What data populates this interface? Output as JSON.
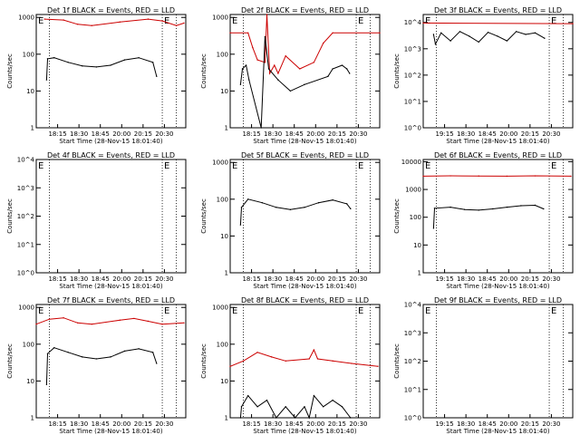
{
  "figure": {
    "panels": [
      {
        "title": "Det 1f BLACK = Events, RED = LLD",
        "ylabel": "Counts/sec",
        "xlabel": "Start Time (28-Nov-15 18:01:40)"
      },
      {
        "title": "Det 2f BLACK = Events, RED = LLD",
        "ylabel": "Counts/sec",
        "xlabel": "Start Time (28-Nov-15 18:01:40)"
      },
      {
        "title": "Det 3f BLACK = Events, RED = LLD",
        "ylabel": "Counts/sec",
        "xlabel": "Start Time (28-Nov-15 18:01:40)"
      },
      {
        "title": "Det 4f BLACK = Events, RED = LLD",
        "ylabel": "Counts/sec",
        "xlabel": "Start Time (28-Nov-15 18:01:40)"
      },
      {
        "title": "Det 5f BLACK = Events, RED = LLD",
        "ylabel": "Counts/sec",
        "xlabel": "Start Time (28-Nov-15 18:01:40)"
      },
      {
        "title": "Det 6f BLACK = Events, RED = LLD",
        "ylabel": "Counts/sec",
        "xlabel": "Start Time (28-Nov-15 18:01:40)"
      },
      {
        "title": "Det 7f BLACK = Events, RED = LLD",
        "ylabel": "Counts/sec",
        "xlabel": "Start Time (28-Nov-15 18:01:40)"
      },
      {
        "title": "Det 8f BLACK = Events, RED = LLD",
        "ylabel": "Counts/sec",
        "xlabel": "Start Time (28-Nov-15 18:01:40)"
      },
      {
        "title": "Det 9f BLACK = Events, RED = LLD",
        "ylabel": "Counts/sec",
        "xlabel": "Start Time (28-Nov-15 18:01:40)"
      }
    ]
  },
  "chart_data": [
    {
      "type": "line",
      "title": "Det 1f BLACK = Events, RED = LLD",
      "xlabel": "Start Time (28-Nov-15 18:01:40)",
      "ylabel": "Counts/sec",
      "xlim": [
        "18:01",
        "20:40"
      ],
      "ylim": [
        1,
        1200
      ],
      "yscale": "log",
      "x_ticks": [
        "18:15",
        "18:30",
        "18:45",
        "20:00",
        "20:15",
        "20:30"
      ],
      "y_ticks": [
        "1",
        "10",
        "100",
        "1000"
      ],
      "markers": {
        "S": "18:15",
        "E": "20:15"
      },
      "series": [
        {
          "name": "LLD",
          "color": "#cc0000",
          "points": [
            [
              "18:10",
              900
            ],
            [
              "18:30",
              850
            ],
            [
              "18:45",
              650
            ],
            [
              "19:00",
              600
            ],
            [
              "19:30",
              750
            ],
            [
              "20:00",
              900
            ],
            [
              "20:15",
              800
            ],
            [
              "20:30",
              600
            ],
            [
              "20:38",
              700
            ]
          ]
        },
        {
          "name": "Events",
          "color": "#000000",
          "points": [
            [
              "18:12",
              20
            ],
            [
              "18:13",
              75
            ],
            [
              "18:20",
              80
            ],
            [
              "18:35",
              60
            ],
            [
              "18:50",
              48
            ],
            [
              "19:05",
              45
            ],
            [
              "19:20",
              50
            ],
            [
              "19:35",
              70
            ],
            [
              "19:50",
              80
            ],
            [
              "20:05",
              60
            ],
            [
              "20:09",
              25
            ]
          ]
        }
      ],
      "grid": false
    },
    {
      "type": "line",
      "title": "Det 2f BLACK = Events, RED = LLD",
      "xlabel": "Start Time (28-Nov-15 18:01:40)",
      "ylabel": "Counts/sec",
      "xlim": [
        "18:01",
        "20:40"
      ],
      "ylim": [
        1,
        1200
      ],
      "yscale": "log",
      "x_ticks": [
        "18:15",
        "18:30",
        "18:45",
        "20:00",
        "20:15",
        "20:30"
      ],
      "y_ticks": [
        "1",
        "10",
        "100",
        "1000"
      ],
      "markers": {
        "S": "18:15",
        "E": "20:15"
      },
      "series": [
        {
          "name": "LLD",
          "color": "#cc0000",
          "points": [
            [
              "18:01",
              380
            ],
            [
              "18:20",
              380
            ],
            [
              "18:25",
              150
            ],
            [
              "18:30",
              70
            ],
            [
              "18:38",
              60
            ],
            [
              "18:40",
              1200
            ],
            [
              "18:43",
              30
            ],
            [
              "18:48",
              50
            ],
            [
              "18:52",
              30
            ],
            [
              "19:00",
              90
            ],
            [
              "19:15",
              40
            ],
            [
              "19:30",
              60
            ],
            [
              "19:40",
              200
            ],
            [
              "19:50",
              380
            ],
            [
              "20:40",
              380
            ]
          ]
        },
        {
          "name": "Events",
          "color": "#000000",
          "points": [
            [
              "18:12",
              15
            ],
            [
              "18:14",
              40
            ],
            [
              "18:18",
              50
            ],
            [
              "18:21",
              20
            ],
            [
              "18:34",
              1
            ],
            [
              "18:38",
              300
            ],
            [
              "18:42",
              40
            ],
            [
              "18:52",
              20
            ],
            [
              "19:05",
              10
            ],
            [
              "19:20",
              15
            ],
            [
              "19:45",
              25
            ],
            [
              "19:50",
              40
            ],
            [
              "20:00",
              50
            ],
            [
              "20:05",
              40
            ],
            [
              "20:08",
              30
            ]
          ]
        }
      ],
      "grid": false
    },
    {
      "type": "line",
      "title": "Det 3f BLACK = Events, RED = LLD",
      "xlabel": "Start Time (28-Nov-15 18:01:40)",
      "ylabel": "Counts/sec",
      "xlim": [
        "18:01",
        "20:40"
      ],
      "ylim": [
        1,
        20000
      ],
      "yscale": "log",
      "x_ticks": [
        "19:15",
        "18:30",
        "18:45",
        "20:00",
        "20:15",
        "20:30"
      ],
      "y_ticks": [
        "10^0",
        "10^1",
        "10^2",
        "10^3",
        "10^4"
      ],
      "markers": {
        "S": "18:15",
        "E": "20:15"
      },
      "series": [
        {
          "name": "LLD",
          "color": "#cc0000",
          "points": [
            [
              "18:01",
              9500
            ],
            [
              "20:40",
              9000
            ]
          ]
        },
        {
          "name": "Events",
          "color": "#000000",
          "points": [
            [
              "18:12",
              3500
            ],
            [
              "18:14",
              1500
            ],
            [
              "18:20",
              4000
            ],
            [
              "18:30",
              2000
            ],
            [
              "18:40",
              4500
            ],
            [
              "18:50",
              3000
            ],
            [
              "19:00",
              1800
            ],
            [
              "19:10",
              4200
            ],
            [
              "19:20",
              3000
            ],
            [
              "19:30",
              2000
            ],
            [
              "19:40",
              4500
            ],
            [
              "19:50",
              3500
            ],
            [
              "20:00",
              4000
            ],
            [
              "20:10",
              2500
            ]
          ]
        }
      ],
      "grid": false
    },
    {
      "type": "line",
      "title": "Det 4f BLACK = Events, RED = LLD",
      "xlabel": "Start Time (28-Nov-15 18:01:40)",
      "ylabel": "Counts/sec",
      "xlim": [
        "18:01",
        "20:40"
      ],
      "ylim": [
        1,
        10000
      ],
      "yscale": "log",
      "x_ticks": [
        "18:15",
        "18:30",
        "18:45",
        "20:00",
        "20:15",
        "20:30"
      ],
      "y_ticks": [
        "10^0",
        "10^1",
        "10^2",
        "10^3",
        "10^4"
      ],
      "markers": {
        "S": "18:15",
        "E": "20:15"
      },
      "series": [],
      "grid": false
    },
    {
      "type": "line",
      "title": "Det 5f BLACK = Events, RED = LLD",
      "xlabel": "Start Time (28-Nov-15 18:01:40)",
      "ylabel": "Counts/sec",
      "xlim": [
        "18:01",
        "20:40"
      ],
      "ylim": [
        1,
        1200
      ],
      "yscale": "log",
      "x_ticks": [
        "18:15",
        "18:30",
        "18:45",
        "20:00",
        "20:15",
        "20:30"
      ],
      "y_ticks": [
        "1",
        "10",
        "100",
        "1000"
      ],
      "markers": {
        "S": "18:15",
        "E": "20:15"
      },
      "series": [
        {
          "name": "Events",
          "color": "#000000",
          "points": [
            [
              "18:12",
              20
            ],
            [
              "18:13",
              60
            ],
            [
              "18:20",
              100
            ],
            [
              "18:35",
              80
            ],
            [
              "18:50",
              60
            ],
            [
              "19:05",
              52
            ],
            [
              "19:20",
              60
            ],
            [
              "19:35",
              80
            ],
            [
              "19:50",
              95
            ],
            [
              "20:05",
              75
            ],
            [
              "20:09",
              55
            ]
          ]
        }
      ],
      "grid": false
    },
    {
      "type": "line",
      "title": "Det 6f BLACK = Events, RED = LLD",
      "xlabel": "Start Time (28-Nov-15 18:01:40)",
      "ylabel": "Counts/sec",
      "xlim": [
        "18:01",
        "20:40"
      ],
      "ylim": [
        1,
        12000
      ],
      "yscale": "log",
      "x_ticks": [
        "19:15",
        "18:30",
        "18:45",
        "20:00",
        "20:15",
        "20:30"
      ],
      "y_ticks": [
        "1",
        "10",
        "100",
        "1000",
        "10000"
      ],
      "markers": {
        "S": "18:15",
        "E": "20:15"
      },
      "series": [
        {
          "name": "LLD",
          "color": "#cc0000",
          "points": [
            [
              "18:01",
              3000
            ],
            [
              "18:30",
              3100
            ],
            [
              "19:00",
              3050
            ],
            [
              "19:30",
              3000
            ],
            [
              "20:00",
              3100
            ],
            [
              "20:38",
              3000
            ]
          ]
        },
        {
          "name": "Events",
          "color": "#000000",
          "points": [
            [
              "18:12",
              40
            ],
            [
              "18:13",
              210
            ],
            [
              "18:30",
              230
            ],
            [
              "18:45",
              190
            ],
            [
              "19:00",
              180
            ],
            [
              "19:15",
              200
            ],
            [
              "19:30",
              230
            ],
            [
              "19:45",
              260
            ],
            [
              "20:00",
              270
            ],
            [
              "20:09",
              200
            ]
          ]
        }
      ],
      "grid": false
    },
    {
      "type": "line",
      "title": "Det 7f BLACK = Events, RED = LLD",
      "xlabel": "Start Time (28-Nov-15 18:01:40)",
      "ylabel": "Counts/sec",
      "xlim": [
        "18:01",
        "20:40"
      ],
      "ylim": [
        1,
        1200
      ],
      "yscale": "log",
      "x_ticks": [
        "18:15",
        "18:30",
        "18:45",
        "20:00",
        "20:15",
        "20:30"
      ],
      "y_ticks": [
        "1",
        "10",
        "100",
        "1000"
      ],
      "markers": {
        "S": "18:15",
        "E": "20:15"
      },
      "series": [
        {
          "name": "LLD",
          "color": "#cc0000",
          "points": [
            [
              "18:01",
              350
            ],
            [
              "18:15",
              480
            ],
            [
              "18:30",
              520
            ],
            [
              "18:45",
              380
            ],
            [
              "19:00",
              350
            ],
            [
              "19:30",
              450
            ],
            [
              "19:45",
              500
            ],
            [
              "20:00",
              420
            ],
            [
              "20:15",
              350
            ],
            [
              "20:38",
              380
            ]
          ]
        },
        {
          "name": "Events",
          "color": "#000000",
          "points": [
            [
              "18:12",
              8
            ],
            [
              "18:13",
              55
            ],
            [
              "18:20",
              80
            ],
            [
              "18:35",
              60
            ],
            [
              "18:50",
              45
            ],
            [
              "19:05",
              40
            ],
            [
              "19:20",
              45
            ],
            [
              "19:35",
              65
            ],
            [
              "19:50",
              75
            ],
            [
              "20:05",
              60
            ],
            [
              "20:09",
              30
            ]
          ]
        }
      ],
      "grid": false
    },
    {
      "type": "line",
      "title": "Det 8f BLACK = Events, RED = LLD",
      "xlabel": "Start Time (28-Nov-15 18:01:40)",
      "ylabel": "Counts/sec",
      "xlim": [
        "18:01",
        "20:40"
      ],
      "ylim": [
        1,
        1200
      ],
      "yscale": "log",
      "x_ticks": [
        "18:15",
        "18:30",
        "18:45",
        "20:00",
        "20:15",
        "20:30"
      ],
      "y_ticks": [
        "1",
        "10",
        "100",
        "1000"
      ],
      "markers": {
        "S": "18:15",
        "E": "20:15"
      },
      "series": [
        {
          "name": "LLD",
          "color": "#cc0000",
          "points": [
            [
              "18:01",
              25
            ],
            [
              "18:15",
              35
            ],
            [
              "18:30",
              60
            ],
            [
              "18:45",
              45
            ],
            [
              "19:00",
              35
            ],
            [
              "19:25",
              40
            ],
            [
              "19:30",
              70
            ],
            [
              "19:34",
              40
            ],
            [
              "19:50",
              35
            ],
            [
              "20:10",
              30
            ],
            [
              "20:38",
              25
            ]
          ]
        },
        {
          "name": "Events",
          "color": "#000000",
          "points": [
            [
              "18:12",
              1
            ],
            [
              "18:13",
              2
            ],
            [
              "18:20",
              4
            ],
            [
              "18:30",
              2
            ],
            [
              "18:40",
              3
            ],
            [
              "18:50",
              1
            ],
            [
              "19:00",
              2
            ],
            [
              "19:10",
              1
            ],
            [
              "19:20",
              2
            ],
            [
              "19:25",
              1
            ],
            [
              "19:30",
              4
            ],
            [
              "19:40",
              2
            ],
            [
              "19:50",
              3
            ],
            [
              "20:00",
              2
            ],
            [
              "20:09",
              1
            ]
          ]
        }
      ],
      "grid": false
    },
    {
      "type": "line",
      "title": "Det 9f BLACK = Events, RED = LLD",
      "xlabel": "Start Time (28-Nov-15 18:01:40)",
      "ylabel": "Counts/sec",
      "xlim": [
        "18:01",
        "20:40"
      ],
      "ylim": [
        1,
        10000
      ],
      "yscale": "log",
      "x_ticks": [
        "19:15",
        "18:30",
        "18:45",
        "20:00",
        "20:15",
        "20:30"
      ],
      "y_ticks": [
        "10^0",
        "10^1",
        "10^2",
        "10^3",
        "10^4"
      ],
      "markers": {
        "S": "18:15",
        "E": "20:15"
      },
      "series": [],
      "grid": false
    }
  ]
}
